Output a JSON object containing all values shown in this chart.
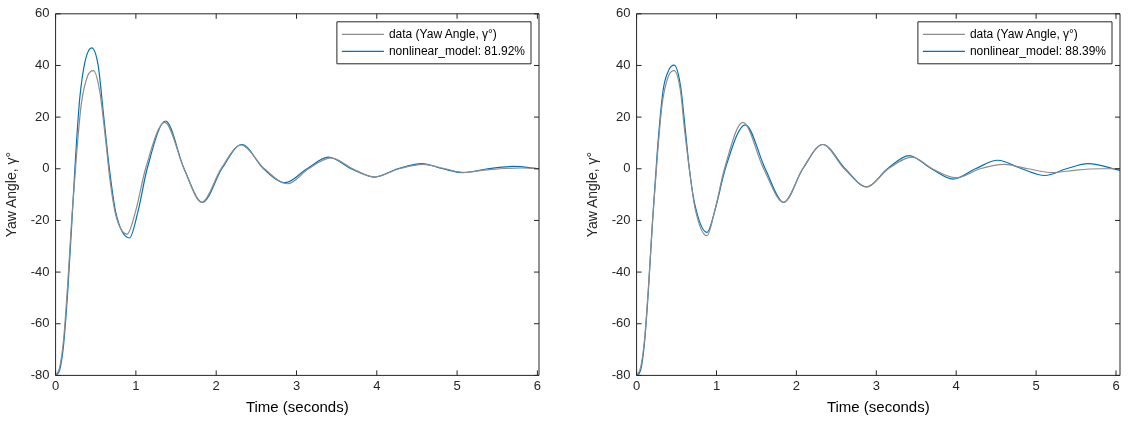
{
  "chart_data": [
    {
      "type": "line",
      "xlabel": "Time (seconds)",
      "ylabel": "Yaw Angle, γ°",
      "xlim": [
        0,
        6.02
      ],
      "xticks": [
        0,
        1,
        2,
        3,
        4,
        5,
        6
      ],
      "ylim": [
        -80,
        60
      ],
      "yticks": [
        -80,
        -60,
        -40,
        -20,
        0,
        20,
        40,
        60
      ],
      "legend": "top right",
      "grid": false,
      "marker": "none",
      "line_style": "solid",
      "series": [
        {
          "name": "data (Yaw Angle, γ°)",
          "color": "#8c8c8c",
          "x": [
            0,
            0.05,
            0.1,
            0.15,
            0.2,
            0.26,
            0.32,
            0.4,
            0.47,
            0.55,
            0.62,
            0.68,
            0.75,
            0.89,
            1.0,
            1.12,
            1.36,
            1.6,
            1.82,
            2.06,
            2.31,
            2.6,
            2.89,
            3.15,
            3.43,
            3.7,
            3.97,
            4.28,
            4.58,
            4.85,
            5.07,
            5.4,
            5.8,
            6.02
          ],
          "values": [
            -80,
            -77,
            -66,
            -45,
            -20,
            5,
            25,
            36,
            38,
            30,
            12,
            -5,
            -18,
            -25.3,
            -16,
            0,
            18,
            0,
            -13,
            0,
            9.2,
            0,
            -5.8,
            0,
            4.2,
            0,
            -3.2,
            0,
            1.7,
            0,
            -1.4,
            -0.3,
            0.3,
            0
          ]
        },
        {
          "name": "nonlinear_model: 81.92%",
          "color": "#0072bd",
          "x": [
            0,
            0.05,
            0.1,
            0.15,
            0.2,
            0.25,
            0.3,
            0.37,
            0.45,
            0.53,
            0.6,
            0.67,
            0.75,
            0.92,
            1.03,
            1.14,
            1.37,
            1.6,
            1.83,
            2.07,
            2.32,
            2.59,
            2.86,
            3.13,
            3.4,
            3.68,
            3.97,
            4.26,
            4.56,
            4.82,
            5.07,
            5.38,
            5.7,
            6.02
          ],
          "values": [
            -80,
            -78,
            -68,
            -48,
            -22,
            5,
            27,
            42,
            46.8,
            40,
            20,
            0,
            -17,
            -26.8,
            -16,
            0,
            18.5,
            0,
            -13,
            0,
            9.4,
            0,
            -5.4,
            0,
            4.5,
            0,
            -3.2,
            0,
            2,
            0,
            -1.5,
            0,
            0.9,
            0
          ]
        }
      ]
    },
    {
      "type": "line",
      "xlabel": "Time (seconds)",
      "ylabel": "Yaw Angle, γ°",
      "xlim": [
        0,
        6.05
      ],
      "xticks": [
        0,
        1,
        2,
        3,
        4,
        5,
        6
      ],
      "ylim": [
        -80,
        60
      ],
      "yticks": [
        -80,
        -60,
        -40,
        -20,
        0,
        20,
        40,
        60
      ],
      "legend": "top right",
      "grid": false,
      "marker": "none",
      "line_style": "solid",
      "series": [
        {
          "name": "data (Yaw Angle, γ°)",
          "color": "#8c8c8c",
          "x": [
            0,
            0.05,
            0.1,
            0.15,
            0.2,
            0.26,
            0.32,
            0.4,
            0.47,
            0.55,
            0.6,
            0.66,
            0.73,
            0.88,
            0.98,
            1.1,
            1.33,
            1.59,
            1.84,
            2.08,
            2.33,
            2.6,
            2.88,
            3.15,
            3.45,
            3.7,
            4.0,
            4.3,
            4.6,
            4.9,
            5.2,
            5.5,
            5.8,
            6.05
          ],
          "values": [
            -80,
            -77,
            -66,
            -45,
            -20,
            5,
            25,
            36,
            38,
            30,
            15,
            0,
            -15,
            -25.9,
            -16,
            0,
            18,
            0,
            -13,
            0,
            9.4,
            0,
            -7,
            0,
            4.5,
            0,
            -3.5,
            0,
            1.7,
            0,
            -1.5,
            -0.5,
            0,
            0
          ]
        },
        {
          "name": "nonlinear_model: 88.39%",
          "color": "#0072bd",
          "x": [
            0,
            0.05,
            0.1,
            0.15,
            0.2,
            0.26,
            0.33,
            0.4,
            0.47,
            0.55,
            0.61,
            0.66,
            0.73,
            0.88,
            0.99,
            1.11,
            1.36,
            1.61,
            1.84,
            2.08,
            2.33,
            2.61,
            2.88,
            3.14,
            3.41,
            3.69,
            3.96,
            4.24,
            4.52,
            4.82,
            5.11,
            5.38,
            5.65,
            6.05
          ],
          "values": [
            -80,
            -78,
            -67,
            -46,
            -20,
            7,
            30,
            38,
            40.1,
            32,
            15,
            0,
            -14,
            -24.6,
            -15,
            0,
            17,
            0,
            -13,
            0,
            9.4,
            0,
            -7,
            0,
            5.1,
            0,
            -4,
            0,
            3.3,
            0,
            -2.6,
            0,
            2,
            -0.6
          ]
        }
      ]
    }
  ]
}
